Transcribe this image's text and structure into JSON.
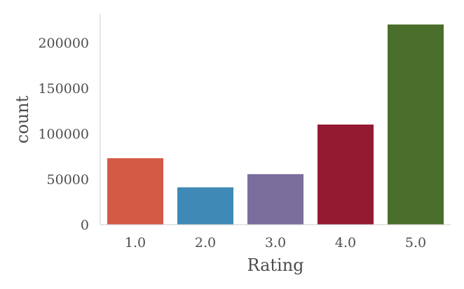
{
  "chart_data": {
    "type": "bar",
    "title": "",
    "xlabel": "Rating",
    "ylabel": "count",
    "categories": [
      "1.0",
      "2.0",
      "3.0",
      "4.0",
      "5.0"
    ],
    "values": [
      73000,
      41000,
      55500,
      110000,
      220000
    ],
    "colors": [
      "#d35a45",
      "#3e89b5",
      "#7b6e9d",
      "#931a31",
      "#4a6e2b"
    ],
    "ylim": [
      0,
      230000
    ],
    "yticks": [
      0,
      50000,
      100000,
      150000,
      200000
    ],
    "ytick_labels": [
      "0",
      "50000",
      "100000",
      "150000",
      "200000"
    ],
    "grid": false,
    "legend": "none"
  }
}
